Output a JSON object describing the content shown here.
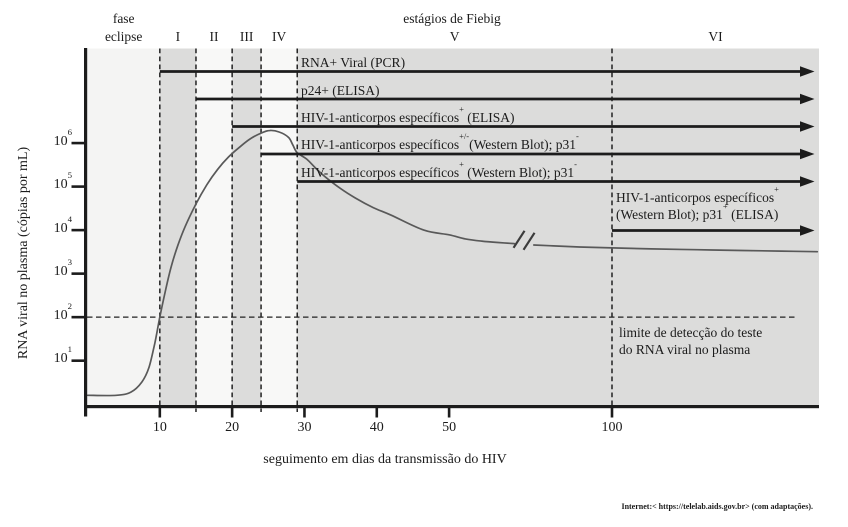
{
  "source": "Internet:< https://telelab.aids.gov.br> (com adaptações).",
  "chart_data": {
    "type": "line",
    "header": {
      "phase_label_line1": "fase",
      "phase_label_line2": "eclipse",
      "stages_title": "estágios de Fiebig"
    },
    "xlabel": "seguimento em dias da transmissão do HIV",
    "ylabel": "RNA viral no plasma (cópias por mL)",
    "y_scale": "log10",
    "ylim_log10": [
      0,
      6.6
    ],
    "grid": "off",
    "x_ticks": [
      {
        "label": "10",
        "day": 10
      },
      {
        "label": "20",
        "day": 20
      },
      {
        "label": "30",
        "day": 30
      },
      {
        "label": "40",
        "day": 40
      },
      {
        "label": "50",
        "day": 50
      },
      {
        "label": "100",
        "day": 100
      }
    ],
    "x_axis_note": "time scale compressed after day 50; break symbol on curve near day 73",
    "y_ticks": [
      {
        "label": "10^{6}",
        "value": 1000000
      },
      {
        "label": "10^{5}",
        "value": 100000
      },
      {
        "label": "10^{4}",
        "value": 10000
      },
      {
        "label": "10^{3}",
        "value": 1000
      },
      {
        "label": "10^{2}",
        "value": 100
      },
      {
        "label": "10^{1}",
        "value": 10
      }
    ],
    "phases": [
      {
        "name": "fase eclipse",
        "numeral": null,
        "from_day": 0,
        "to_day": 10,
        "shade": "lightest"
      },
      {
        "name": "Fiebig I",
        "numeral": "I",
        "from_day": 10,
        "to_day": 15,
        "shade": "dark"
      },
      {
        "name": "Fiebig II",
        "numeral": "II",
        "from_day": 15,
        "to_day": 20,
        "shade": "light"
      },
      {
        "name": "Fiebig III",
        "numeral": "III",
        "from_day": 20,
        "to_day": 24,
        "shade": "dark"
      },
      {
        "name": "Fiebig IV",
        "numeral": "IV",
        "from_day": 24,
        "to_day": 29,
        "shade": "light"
      },
      {
        "name": "Fiebig V",
        "numeral": "V",
        "from_day": 29,
        "to_day": 100,
        "shade": "dark"
      },
      {
        "name": "Fiebig VI",
        "numeral": "VI",
        "from_day": 100,
        "to_day": null,
        "shade": "dark"
      }
    ],
    "markers": [
      {
        "label": "RNA+ Viral (PCR)",
        "start_day": 10
      },
      {
        "label": "p24+ (ELISA)",
        "start_day": 15
      },
      {
        "label": "HIV-1-anticorpos específicos^{+} (ELISA)",
        "start_day": 20
      },
      {
        "label": "HIV-1-anticorpos específicos^{+/-}(Western Blot); p31^{-}",
        "start_day": 24
      },
      {
        "label": "HIV-1-anticorpos específicos^{+} (Western Blot); p31^{-}",
        "start_day": 29
      },
      {
        "label_lines": [
          "HIV-1-anticorpos específicos^{+}",
          "(Western Blot); p31^{+} (ELISA)"
        ],
        "start_day": 100
      }
    ],
    "detection_limit": {
      "value": 100,
      "label_lines": [
        "limite de detecção do teste",
        "do RNA viral no plasma"
      ]
    },
    "series": [
      {
        "name": "RNA viral no plasma (cópias por mL)",
        "break_between_days": [
          70,
          76
        ],
        "points": [
          [
            0,
            1.6
          ],
          [
            4,
            1.6
          ],
          [
            6,
            1.9
          ],
          [
            7.5,
            3.2
          ],
          [
            8.5,
            7
          ],
          [
            9.3,
            25
          ],
          [
            10,
            100
          ],
          [
            10.8,
            420
          ],
          [
            11.6,
            1500
          ],
          [
            12.5,
            4500
          ],
          [
            13.5,
            12000
          ],
          [
            15,
            40000
          ],
          [
            16.5,
            110000
          ],
          [
            18,
            250000
          ],
          [
            19.5,
            480000
          ],
          [
            21,
            800000
          ],
          [
            22.5,
            1250000
          ],
          [
            24,
            1700000
          ],
          [
            25.2,
            1950000
          ],
          [
            26.5,
            1800000
          ],
          [
            27.8,
            1350000
          ],
          [
            28.4,
            900000
          ],
          [
            29,
            600000
          ],
          [
            30.3,
            430000
          ],
          [
            31.6,
            260000
          ],
          [
            33,
            160000
          ],
          [
            35,
            90000
          ],
          [
            37,
            55000
          ],
          [
            39.5,
            33000
          ],
          [
            42,
            22000
          ],
          [
            46.5,
            10000
          ],
          [
            50,
            7800
          ],
          [
            55,
            6300
          ],
          [
            60,
            5600
          ],
          [
            65,
            5200
          ],
          [
            70,
            4900
          ],
          [
            76,
            4550
          ],
          [
            82,
            4350
          ],
          [
            90,
            4100
          ],
          [
            100,
            3900
          ],
          [
            112,
            3700
          ],
          [
            126,
            3550
          ],
          [
            140,
            3400
          ],
          [
            152,
            3300
          ],
          [
            163,
            3200
          ]
        ]
      }
    ],
    "colors": {
      "band_dark": "#dcdcdb",
      "band_light": "#f8f8f7",
      "band_lightest": "#f4f4f3",
      "curve": "#595959",
      "arrow": "#1c1c1c",
      "dashed": "#222222",
      "text": "#1b1b1b"
    }
  }
}
